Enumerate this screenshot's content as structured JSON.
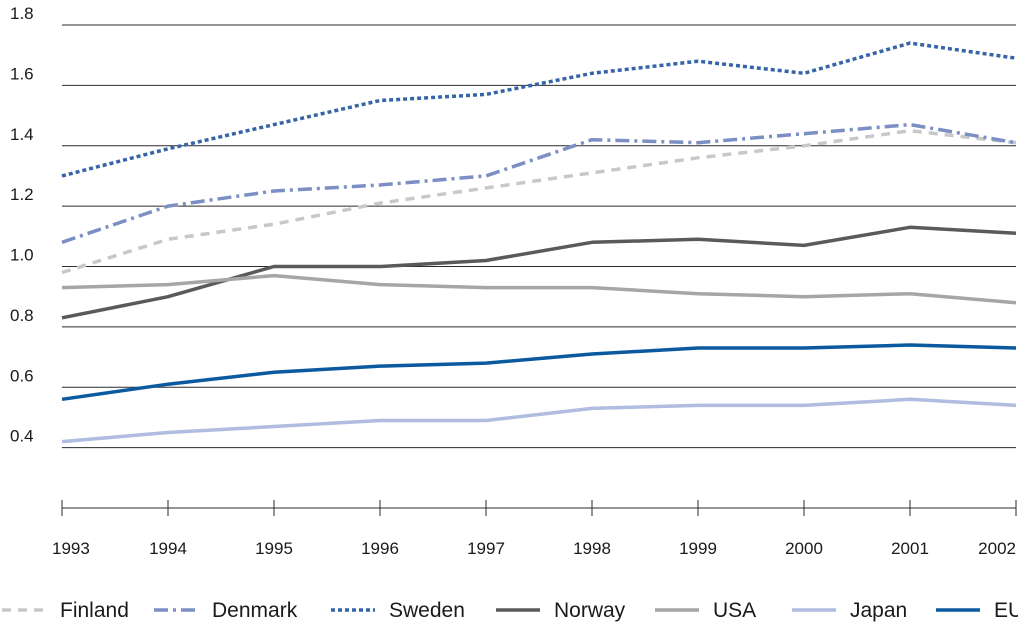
{
  "chart_data": {
    "type": "line",
    "x": [
      "1993",
      "1994",
      "1995",
      "1996",
      "1997",
      "1998",
      "1999",
      "2000",
      "2001",
      "2002"
    ],
    "ylim": [
      0.2,
      1.8
    ],
    "yticks": [
      "0.4",
      "0.6",
      "0.8",
      "1.0",
      "1.2",
      "1.4",
      "1.6",
      "1.8"
    ],
    "grid": "horizontal",
    "legend_position": "bottom",
    "series": [
      {
        "name": "Finland",
        "color": "#c8c8c8",
        "dash": "dashed",
        "values": [
          0.98,
          1.09,
          1.14,
          1.21,
          1.26,
          1.31,
          1.36,
          1.4,
          1.45,
          1.41
        ]
      },
      {
        "name": "Denmark",
        "color": "#7b8fc4",
        "dash": "dashdot",
        "values": [
          1.08,
          1.2,
          1.25,
          1.27,
          1.3,
          1.42,
          1.41,
          1.44,
          1.47,
          1.41
        ]
      },
      {
        "name": "Sweden",
        "color": "#3565a8",
        "dash": "dotted",
        "values": [
          1.3,
          1.39,
          1.47,
          1.55,
          1.57,
          1.64,
          1.68,
          1.64,
          1.74,
          1.69
        ]
      },
      {
        "name": "Norway",
        "color": "#5a5a5a",
        "dash": "solid",
        "values": [
          0.83,
          0.9,
          1.0,
          1.0,
          1.02,
          1.08,
          1.09,
          1.07,
          1.13,
          1.11
        ]
      },
      {
        "name": "USA",
        "color": "#a6a6a6",
        "dash": "solid",
        "values": [
          0.93,
          0.94,
          0.97,
          0.94,
          0.93,
          0.93,
          0.91,
          0.9,
          0.91,
          0.88
        ]
      },
      {
        "name": "Japan",
        "color": "#b0bde0",
        "dash": "solid",
        "values": [
          0.42,
          0.45,
          0.47,
          0.49,
          0.49,
          0.53,
          0.54,
          0.54,
          0.56,
          0.54
        ]
      },
      {
        "name": "EU",
        "color": "#0b5aa0",
        "dash": "solid",
        "values": [
          0.56,
          0.61,
          0.65,
          0.67,
          0.68,
          0.71,
          0.73,
          0.73,
          0.74,
          0.73
        ]
      }
    ]
  }
}
